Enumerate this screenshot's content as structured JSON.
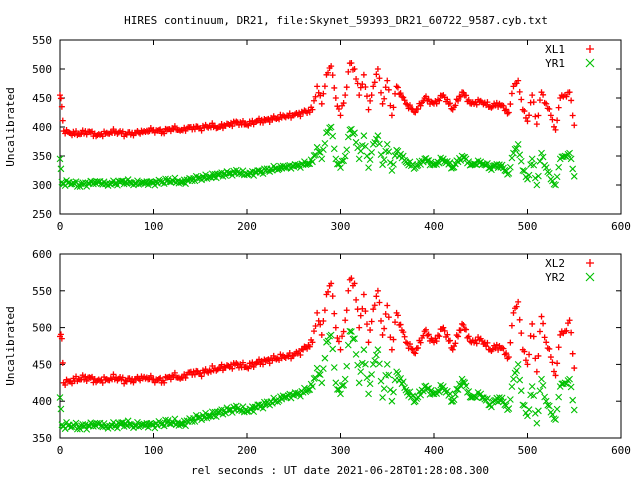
{
  "colors": {
    "series1": "#ff0000",
    "series2": "#00c000",
    "axis": "#000000",
    "background": "#ffffff"
  },
  "chart_data": [
    {
      "type": "scatter",
      "title": "HIRES continuum, DR21, file:Skynet_59393_DR21_60722_9587.cyb.txt",
      "xlabel": "",
      "ylabel": "Uncalibrated",
      "xlim": [
        0,
        600
      ],
      "ylim": [
        250,
        550
      ],
      "xticks": [
        "0",
        "100",
        "200",
        "300",
        "400",
        "500",
        "600"
      ],
      "yticks": [
        "250",
        "300",
        "350",
        "400",
        "450",
        "500",
        "550"
      ],
      "grid": false,
      "legend": "top-right",
      "series": [
        {
          "name": "XL1",
          "marker": "plus",
          "color": "#ff0000",
          "x": [
            0,
            2,
            4,
            10,
            20,
            30,
            40,
            50,
            60,
            70,
            80,
            90,
            100,
            110,
            120,
            130,
            140,
            150,
            160,
            170,
            180,
            190,
            200,
            210,
            220,
            230,
            240,
            250,
            260,
            270,
            275,
            280,
            285,
            290,
            295,
            300,
            305,
            310,
            315,
            320,
            325,
            330,
            335,
            340,
            345,
            350,
            355,
            360,
            370,
            380,
            390,
            400,
            410,
            420,
            430,
            440,
            450,
            460,
            470,
            480,
            485,
            490,
            495,
            500,
            505,
            510,
            515,
            520,
            525,
            530,
            535,
            540,
            545,
            550
          ],
          "y": [
            455,
            435,
            393,
            390,
            388,
            392,
            386,
            390,
            392,
            388,
            390,
            393,
            395,
            392,
            398,
            395,
            400,
            398,
            402,
            400,
            405,
            408,
            404,
            410,
            412,
            415,
            418,
            420,
            425,
            430,
            470,
            440,
            490,
            505,
            450,
            420,
            455,
            510,
            500,
            455,
            490,
            430,
            470,
            500,
            440,
            480,
            420,
            470,
            440,
            425,
            450,
            440,
            455,
            430,
            460,
            440,
            445,
            435,
            440,
            425,
            470,
            480,
            430,
            410,
            455,
            405,
            460,
            440,
            420,
            395,
            450,
            455,
            460,
            403
          ]
        },
        {
          "name": "YR1",
          "marker": "x",
          "color": "#00c000",
          "x": [
            0,
            2,
            4,
            10,
            20,
            30,
            40,
            50,
            60,
            70,
            80,
            90,
            100,
            110,
            120,
            130,
            140,
            150,
            160,
            170,
            180,
            190,
            200,
            210,
            220,
            230,
            240,
            250,
            260,
            270,
            275,
            280,
            285,
            290,
            295,
            300,
            305,
            310,
            315,
            320,
            325,
            330,
            335,
            340,
            345,
            350,
            355,
            360,
            370,
            380,
            390,
            400,
            410,
            420,
            430,
            440,
            450,
            460,
            470,
            480,
            485,
            490,
            495,
            500,
            505,
            510,
            515,
            520,
            525,
            530,
            535,
            540,
            545,
            550
          ],
          "y": [
            345,
            305,
            302,
            305,
            300,
            303,
            306,
            302,
            304,
            306,
            303,
            305,
            304,
            306,
            308,
            305,
            310,
            312,
            314,
            318,
            320,
            322,
            318,
            322,
            325,
            328,
            330,
            332,
            335,
            340,
            365,
            345,
            390,
            400,
            345,
            330,
            350,
            395,
            390,
            345,
            385,
            330,
            370,
            385,
            335,
            370,
            325,
            360,
            340,
            330,
            345,
            335,
            345,
            330,
            350,
            335,
            340,
            330,
            335,
            320,
            355,
            370,
            325,
            310,
            345,
            300,
            355,
            330,
            310,
            300,
            345,
            350,
            355,
            315
          ]
        }
      ]
    },
    {
      "type": "scatter",
      "title": "",
      "xlabel": "rel seconds : UT date 2021-06-28T01:28:08.300",
      "ylabel": "Uncalibrated",
      "xlim": [
        0,
        600
      ],
      "ylim": [
        350,
        600
      ],
      "xticks": [
        "0",
        "100",
        "200",
        "300",
        "400",
        "500",
        "600"
      ],
      "yticks": [
        "350",
        "400",
        "450",
        "500",
        "550",
        "600"
      ],
      "grid": false,
      "legend": "top-right",
      "series": [
        {
          "name": "XL2",
          "marker": "plus",
          "color": "#ff0000",
          "x": [
            0,
            2,
            4,
            10,
            20,
            30,
            40,
            50,
            60,
            70,
            80,
            90,
            100,
            110,
            120,
            130,
            140,
            150,
            160,
            170,
            180,
            190,
            200,
            210,
            220,
            230,
            240,
            250,
            260,
            270,
            275,
            280,
            285,
            290,
            295,
            300,
            305,
            310,
            315,
            320,
            325,
            330,
            335,
            340,
            345,
            350,
            355,
            360,
            370,
            380,
            390,
            400,
            410,
            420,
            430,
            440,
            450,
            460,
            470,
            480,
            485,
            490,
            495,
            500,
            505,
            510,
            515,
            520,
            525,
            530,
            535,
            540,
            545,
            550
          ],
          "y": [
            488,
            485,
            425,
            427,
            430,
            432,
            428,
            430,
            432,
            428,
            430,
            433,
            430,
            428,
            435,
            432,
            440,
            438,
            442,
            445,
            448,
            450,
            446,
            452,
            455,
            458,
            460,
            462,
            470,
            480,
            520,
            490,
            545,
            560,
            500,
            470,
            510,
            565,
            560,
            500,
            545,
            480,
            525,
            550,
            490,
            530,
            470,
            520,
            480,
            465,
            495,
            480,
            500,
            470,
            505,
            480,
            485,
            470,
            475,
            460,
            520,
            535,
            470,
            450,
            505,
            440,
            515,
            480,
            460,
            435,
            490,
            495,
            510,
            445
          ]
        },
        {
          "name": "YR2",
          "marker": "x",
          "color": "#00c000",
          "x": [
            0,
            2,
            4,
            10,
            20,
            30,
            40,
            50,
            60,
            70,
            80,
            90,
            100,
            110,
            120,
            130,
            140,
            150,
            160,
            170,
            180,
            190,
            200,
            210,
            220,
            230,
            240,
            250,
            260,
            270,
            275,
            280,
            285,
            290,
            295,
            300,
            305,
            310,
            315,
            320,
            325,
            330,
            335,
            340,
            345,
            350,
            355,
            360,
            370,
            380,
            390,
            400,
            410,
            420,
            430,
            440,
            450,
            460,
            470,
            480,
            485,
            490,
            495,
            500,
            505,
            510,
            515,
            520,
            525,
            530,
            535,
            540,
            545,
            550
          ],
          "y": [
            405,
            368,
            366,
            368,
            365,
            367,
            370,
            366,
            368,
            370,
            367,
            369,
            368,
            370,
            372,
            369,
            375,
            378,
            380,
            385,
            388,
            390,
            386,
            392,
            396,
            400,
            405,
            408,
            412,
            420,
            445,
            425,
            480,
            490,
            425,
            410,
            430,
            495,
            485,
            425,
            470,
            410,
            450,
            470,
            405,
            450,
            400,
            440,
            415,
            400,
            420,
            410,
            420,
            400,
            430,
            405,
            410,
            395,
            405,
            390,
            430,
            450,
            395,
            380,
            420,
            370,
            430,
            400,
            385,
            375,
            420,
            425,
            430,
            388
          ]
        }
      ]
    }
  ]
}
